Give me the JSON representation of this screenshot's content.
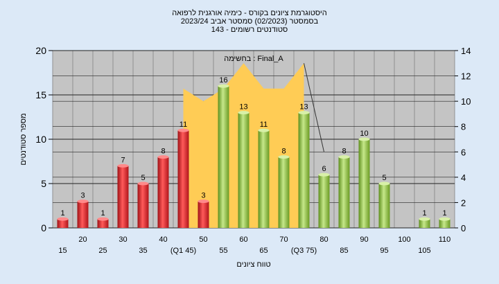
{
  "chart_data": {
    "type": "bar",
    "title_lines": [
      "היסטוגרמת ציונים בקורס - כימיה אורגנית לרפואה",
      "בסמסטר  (02/2023)  סמסטר אביב 2023/24",
      "סטודנטים רשומים - 143"
    ],
    "legend_label": "בחשימה : Final_A",
    "xlabel": "טווח ציונים",
    "ylabel": "מספר סטודנטים",
    "ylim": [
      0,
      20
    ],
    "y_ticks": [
      "0",
      "5",
      "10",
      "15",
      "20"
    ],
    "y2lim": [
      0,
      14
    ],
    "y2_ticks": [
      "0",
      "2",
      "4",
      "6",
      "8",
      "10",
      "12",
      "14"
    ],
    "categories": [
      "15",
      "20",
      "25",
      "30",
      "35",
      "40",
      "(Q1 45)",
      "50",
      "55",
      "60",
      "65",
      "70",
      "(Q3 75)",
      "80",
      "85",
      "90",
      "95",
      "100",
      "105",
      "110"
    ],
    "values": [
      1,
      3,
      1,
      7,
      5,
      8,
      11,
      3,
      16,
      13,
      11,
      8,
      13,
      6,
      8,
      10,
      5,
      0,
      1,
      1
    ],
    "value_labels": [
      "1",
      "3",
      "1",
      "7",
      "5",
      "8",
      "11",
      "3",
      "16",
      "13",
      "11",
      "8",
      "13",
      "6",
      "8",
      "10",
      "5",
      "",
      "1",
      "1"
    ],
    "bar_color_groups": [
      "red",
      "red",
      "red",
      "red",
      "red",
      "red",
      "red",
      "red",
      "green",
      "green",
      "green",
      "green",
      "green",
      "green",
      "green",
      "green",
      "green",
      "green",
      "green",
      "green"
    ],
    "area_series": {
      "name": "Final_A",
      "categories": [
        "(Q1 45)",
        "50",
        "55",
        "60",
        "65",
        "70",
        "(Q3 75)"
      ],
      "values": [
        11,
        10,
        11,
        13,
        11,
        11,
        13
      ],
      "drop_to_category": "80",
      "drop_to_value": 6
    },
    "grid": true,
    "colors": {
      "background": "#dce9f7",
      "plot": "#c4c4c4",
      "area": "#ffcc55",
      "red": "#e8262b",
      "green": "#8cc23c",
      "text": "#000000"
    }
  }
}
